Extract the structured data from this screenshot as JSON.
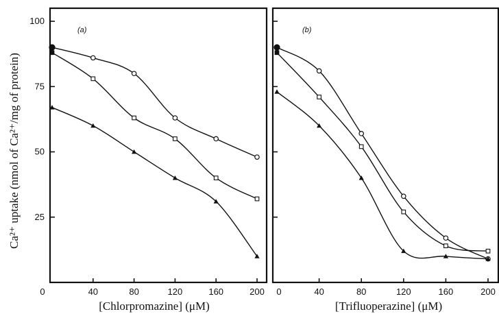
{
  "chart_data": [
    {
      "type": "line",
      "panel_label": "(a)",
      "xlabel": "[Chlorpromazine] (μM)",
      "ylabel": "Ca²⁺ uptake (nmol of Ca²⁺/mg of protein)",
      "xlim": [
        0,
        205
      ],
      "ylim": [
        0,
        105
      ],
      "xticks": [
        0,
        40,
        80,
        120,
        160,
        200
      ],
      "yticks": [
        25,
        50,
        75,
        100
      ],
      "grid": false,
      "series": [
        {
          "marker": "circle",
          "x": [
            0,
            40,
            80,
            120,
            160,
            200
          ],
          "y": [
            90,
            86,
            80,
            63,
            55,
            48
          ]
        },
        {
          "marker": "square",
          "x": [
            0,
            40,
            80,
            120,
            160,
            200
          ],
          "y": [
            88,
            78,
            63,
            55,
            40,
            32
          ]
        },
        {
          "marker": "triangle",
          "x": [
            0,
            40,
            80,
            120,
            160,
            200
          ],
          "y": [
            67,
            60,
            50,
            40,
            31,
            10
          ]
        }
      ]
    },
    {
      "type": "line",
      "panel_label": "(b)",
      "xlabel": "[Trifluoperazine] (μM)",
      "ylabel": "",
      "xlim": [
        0,
        205
      ],
      "ylim": [
        0,
        105
      ],
      "xticks": [
        0,
        40,
        80,
        120,
        160,
        200
      ],
      "yticks": [
        25,
        50,
        75,
        100
      ],
      "grid": false,
      "series": [
        {
          "marker": "circle",
          "x": [
            0,
            40,
            80,
            120,
            160,
            200
          ],
          "y": [
            90,
            81,
            57,
            33,
            17,
            9
          ]
        },
        {
          "marker": "square",
          "x": [
            0,
            40,
            80,
            120,
            160,
            200
          ],
          "y": [
            88,
            71,
            52,
            27,
            14,
            12
          ]
        },
        {
          "marker": "triangle",
          "x": [
            0,
            40,
            80,
            120,
            160,
            200
          ],
          "y": [
            73,
            60,
            40,
            12,
            10,
            9
          ]
        }
      ]
    }
  ]
}
